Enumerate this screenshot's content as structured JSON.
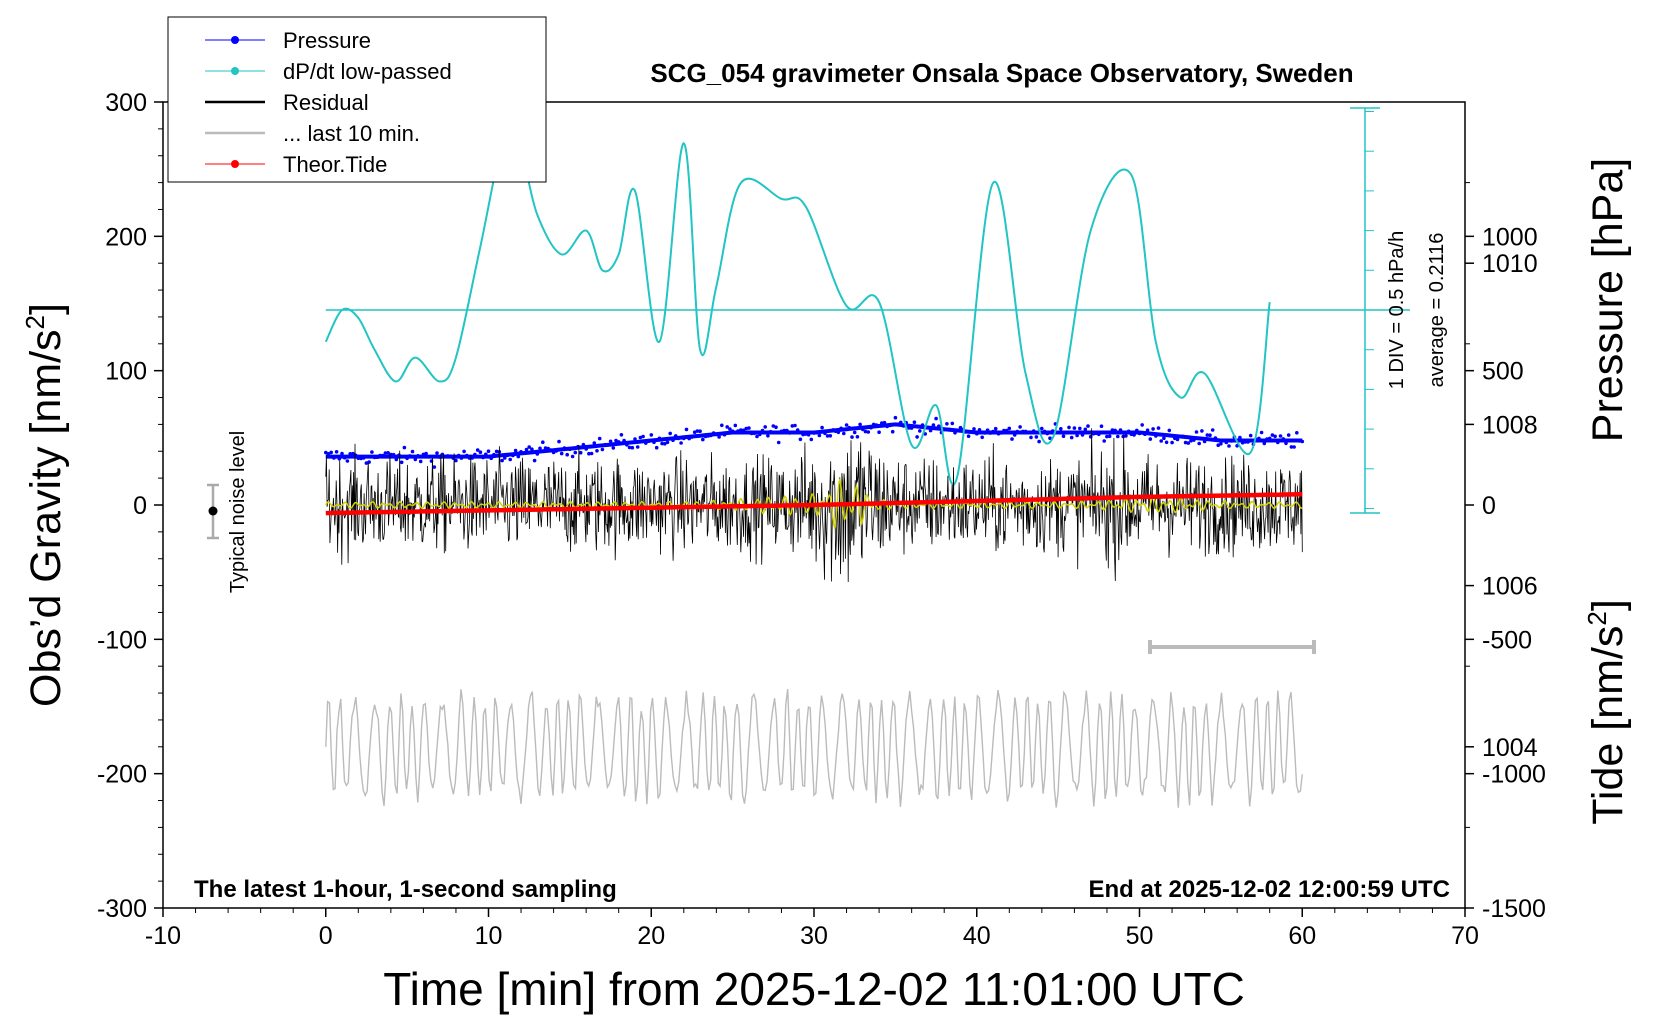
{
  "chart_data": {
    "type": "line",
    "title": "SCG_054 gravimeter Onsala Space Observatory, Sweden",
    "xlabel": "Time [min] from 2025-12-02 11:01:00 UTC",
    "ylabel_left": "Obs’d Gravity [nm/s",
    "ylabel_left_sup": "2",
    "ylabel_left_end": "]",
    "ylabel_right_pressure": "Pressure [hPa]",
    "ylabel_right_tide": "Tide [nm/s",
    "ylabel_right_tide_sup": "2",
    "ylabel_right_tide_end": "]",
    "xlim": [
      -10,
      70
    ],
    "ylim_left": [
      -300,
      300
    ],
    "xticks": [
      -10,
      0,
      10,
      20,
      30,
      40,
      50,
      60,
      70
    ],
    "xtick_labels": [
      "-10",
      "0",
      "10",
      "20",
      "30",
      "40",
      "50",
      "60",
      "70"
    ],
    "yticks_left": [
      -300,
      -200,
      -100,
      0,
      100,
      200,
      300
    ],
    "ytick_labels_left": [
      "-300",
      "-200",
      "-100",
      "0",
      "100",
      "200",
      "300"
    ],
    "pressure_axis": {
      "ticks": [
        1004,
        1006,
        1008,
        1010
      ],
      "labels": [
        "1004",
        "1006",
        "1008",
        "1010"
      ],
      "range": [
        1002,
        1012
      ]
    },
    "tide_axis": {
      "ticks": [
        -1500,
        -1000,
        -500,
        0,
        500,
        1000
      ],
      "labels": [
        "-1500",
        "-1000",
        "-500",
        "0",
        "500",
        "1000"
      ],
      "range": [
        -1500,
        1500
      ]
    },
    "dpdt_scale_label": "1 DIV = 0.5 hPa/h",
    "dpdt_average_label": "average = 0.2116",
    "noise_label": "Typical noise level",
    "footer_left": "The latest 1-hour, 1-second sampling",
    "footer_right": "End at 2025-12-02 12:00:59 UTC",
    "legend": [
      {
        "label": "Pressure",
        "color": "#0000ff",
        "marker": "dot"
      },
      {
        "label": "dP/dt low-passed",
        "color": "#22c4c4",
        "marker": "dot"
      },
      {
        "label": "Residual",
        "color": "#000000",
        "marker": "none"
      },
      {
        "label": "... last 10 min.",
        "color": "#bbbbbb",
        "marker": "none"
      },
      {
        "label": "Theor.Tide",
        "color": "#ff0000",
        "marker": "dot"
      }
    ],
    "legend_position": "top-left",
    "grid": false,
    "series": [
      {
        "name": "Pressure",
        "axis": "pressure",
        "color": "#0000ff",
        "x": [
          0,
          5,
          10,
          15,
          20,
          25,
          30,
          35,
          40,
          45,
          50,
          55,
          60
        ],
        "values": [
          1007.6,
          1007.6,
          1007.6,
          1007.7,
          1007.8,
          1007.9,
          1007.9,
          1008.0,
          1007.9,
          1007.9,
          1007.9,
          1007.8,
          1007.8
        ]
      },
      {
        "name": "dP/dt low-passed",
        "axis": "dpdt",
        "color": "#22c4c4",
        "x": [
          0,
          1,
          2,
          3,
          4.3,
          5.5,
          7,
          8,
          9.5,
          11,
          12,
          13,
          14.5,
          16,
          17,
          18,
          19,
          20.5,
          22,
          23,
          24,
          25.5,
          28,
          29.5,
          32,
          34,
          36,
          37.5,
          38.8,
          41,
          43,
          44.7,
          47,
          49.5,
          51,
          52.5,
          54,
          56.8,
          58
        ],
        "values": [
          -0.4,
          0.0,
          -0.1,
          -0.5,
          -0.9,
          -0.6,
          -0.9,
          -0.6,
          0.8,
          2.2,
          2.0,
          1.2,
          0.7,
          1.0,
          0.5,
          0.7,
          1.5,
          -0.4,
          2.1,
          -0.5,
          0.3,
          1.6,
          1.4,
          1.3,
          0.05,
          0.1,
          -1.7,
          -1.2,
          -2.1,
          1.6,
          -0.8,
          -1.6,
          1.0,
          1.7,
          -0.4,
          -1.1,
          -0.8,
          -1.8,
          0.1
        ]
      },
      {
        "name": "Residual",
        "axis": "gravity",
        "color": "#000000",
        "x": [
          0,
          10,
          20,
          30,
          32,
          40,
          50,
          60
        ],
        "values": [
          0,
          0,
          0,
          0,
          0,
          0,
          0,
          0
        ]
      },
      {
        "name": "... last 10 min.",
        "axis": "gravity",
        "color": "#bbbbbb",
        "x": [
          0,
          60
        ],
        "values": [
          -180,
          -180
        ]
      },
      {
        "name": "Theor.Tide",
        "axis": "tide",
        "color": "#ff0000",
        "x": [
          0,
          10,
          20,
          30,
          40,
          50,
          60
        ],
        "values": [
          -30,
          -20,
          -10,
          0,
          15,
          30,
          40
        ]
      }
    ]
  }
}
